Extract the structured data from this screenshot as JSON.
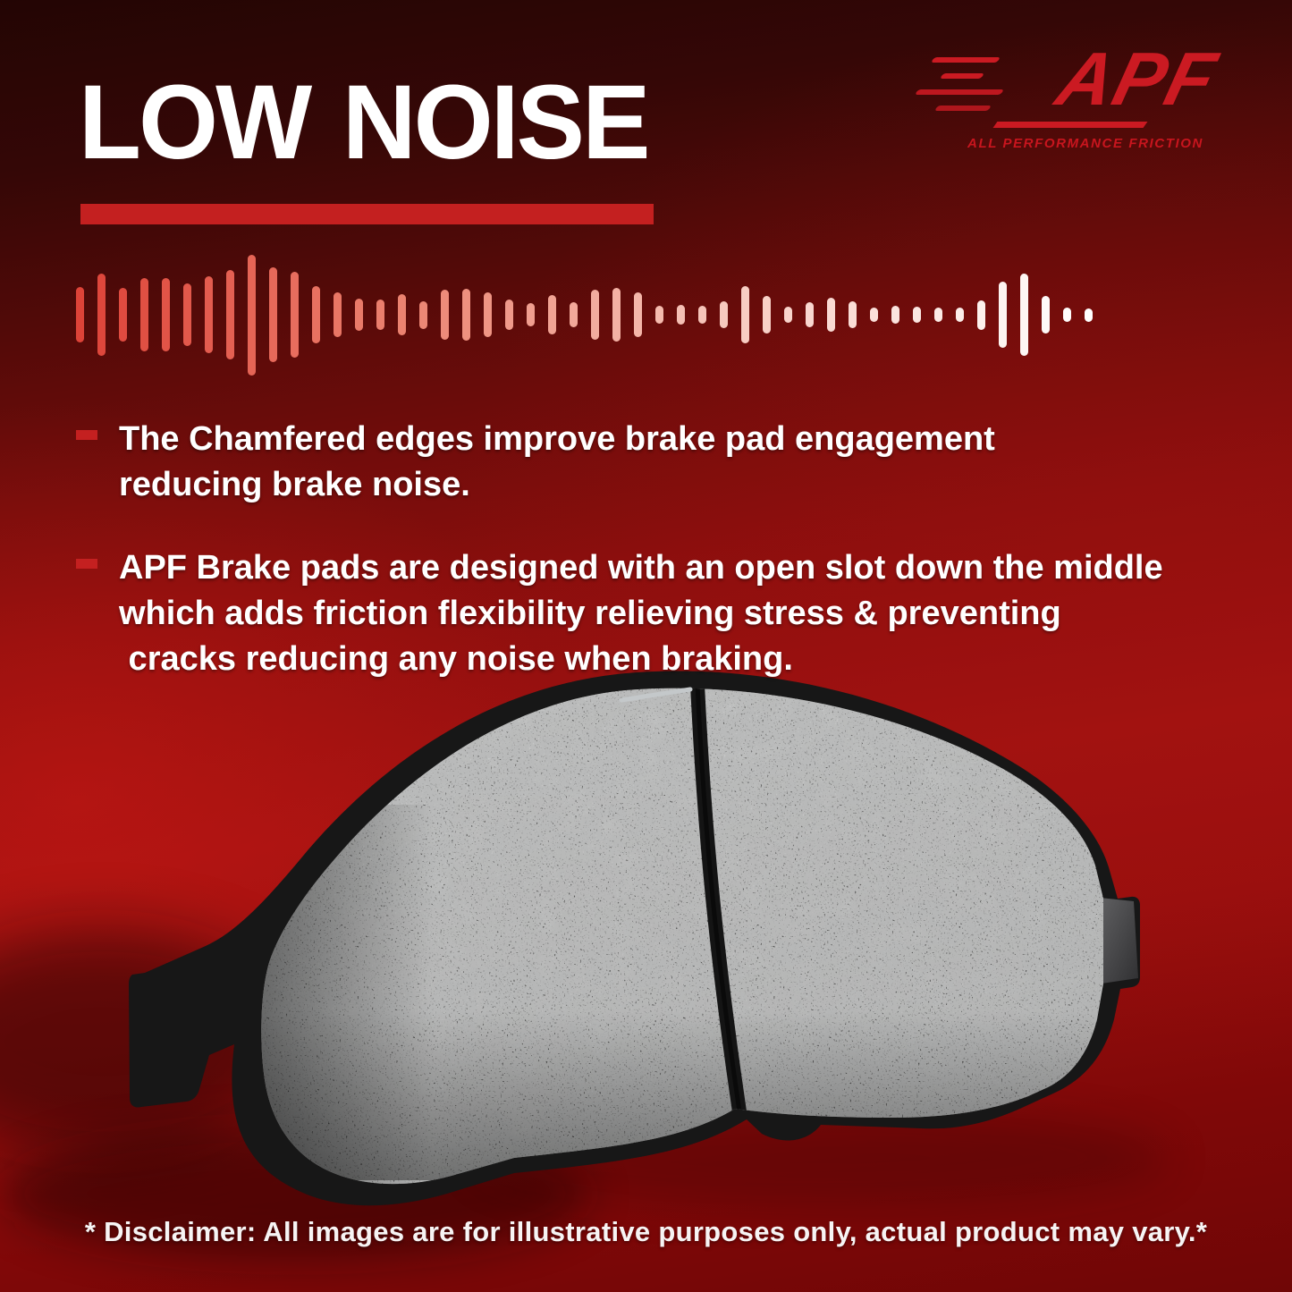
{
  "page": {
    "title": "LOW NOISE",
    "disclaimer": "* Disclaimer: All images are for illustrative purposes only, actual product may vary.*"
  },
  "logo": {
    "brand": "APF",
    "tagline": "ALL PERFORMANCE FRICTION",
    "brand_color": "#cb1a22"
  },
  "accent": {
    "title_underline_color": "#c42020",
    "bullet_marker_color": "#c42020"
  },
  "background": {
    "top": "#230504",
    "mid": "#8e0f0e",
    "bright_left": "#b01311",
    "bottom": "#700606"
  },
  "bullets": [
    {
      "lines": [
        "The Chamfered edges improve brake pad engagement",
        "reducing brake noise."
      ]
    },
    {
      "lines": [
        "APF Brake pads are designed with an open slot down the middle",
        "which adds friction flexibility relieving stress & preventing",
        " cracks reducing any noise when braking."
      ]
    }
  ],
  "waveform": {
    "description": "sound-wave equalizer bars fading red to white, left to right",
    "bar_count": 48,
    "color_stops": [
      "#dd4338",
      "#ec8573",
      "#f8cfc5",
      "#ffffff"
    ],
    "heights": [
      62,
      92,
      60,
      82,
      82,
      70,
      86,
      100,
      135,
      106,
      96,
      64,
      50,
      36,
      34,
      46,
      31,
      56,
      58,
      50,
      34,
      26,
      44,
      28,
      56,
      60,
      50,
      20,
      22,
      20,
      30,
      64,
      42,
      18,
      28,
      38,
      30,
      16,
      20,
      18,
      16,
      16,
      33,
      74,
      92,
      42,
      16,
      15
    ]
  },
  "product": {
    "name": "brake pad with chamfered edges and center slot",
    "friction_color": "#8b8b89",
    "backing_color": "#171717"
  }
}
